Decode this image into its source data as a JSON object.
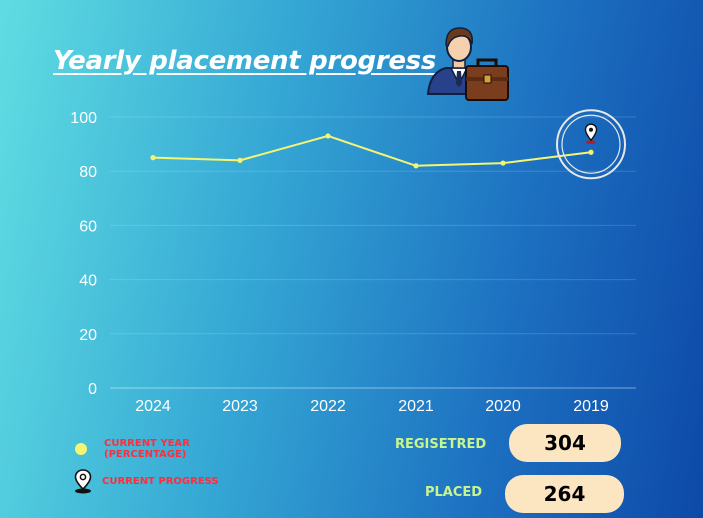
{
  "title": "Yearly placement progress",
  "hero_icon": "businessman-with-briefcase-icon",
  "chart_data": {
    "type": "line",
    "categories": [
      "2024",
      "2023",
      "2022",
      "2021",
      "2020",
      "2019"
    ],
    "series": [
      {
        "name": "CURRENT YEAR (PERCENTAGE)",
        "values": [
          85,
          84,
          93,
          82,
          83,
          87
        ],
        "color": "#f5f571"
      }
    ],
    "ylim": [
      0,
      100
    ],
    "yticks": [
      0,
      20,
      40,
      60,
      80,
      100
    ],
    "grid": true,
    "highlight": {
      "category": "2019",
      "icon": "location-pin-icon",
      "label": "CURRENT PROGRESS"
    }
  },
  "legend": {
    "items": [
      {
        "icon": "yellow-dot",
        "label_line1": "CURRENT YEAR",
        "label_line2": "(PERCENTAGE)"
      },
      {
        "icon": "location-pin-icon",
        "label": "CURRENT PROGRESS"
      }
    ]
  },
  "stats": {
    "registered": {
      "label": "REGISETRED",
      "value": "304"
    },
    "placed": {
      "label": "PLACED",
      "value": "264"
    }
  },
  "colors": {
    "line": "#f5f571",
    "legend_text": "#ff2d3c",
    "stat_label": "#c9f58e",
    "stat_box": "#fce6c2"
  }
}
